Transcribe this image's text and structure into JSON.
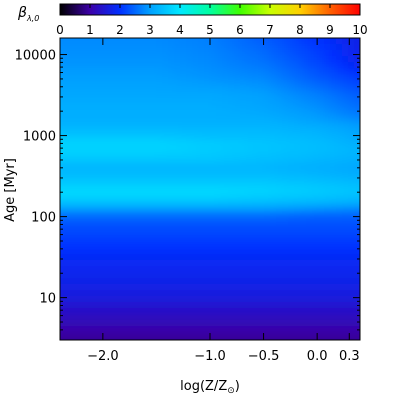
{
  "chart_data": {
    "type": "heatmap",
    "title": "",
    "colorbar": {
      "label_main": "β",
      "label_sub": "λ,0",
      "range": [
        0,
        10
      ],
      "ticks": [
        "0",
        "1",
        "2",
        "3",
        "4",
        "5",
        "6",
        "7",
        "8",
        "9",
        "10"
      ],
      "colormap": "rainbow",
      "position": "top"
    },
    "x_axis": {
      "label_main": "log(Z/Z",
      "label_sub": "⊙",
      "label_end": ")",
      "range": [
        -2.4,
        0.4
      ],
      "ticks": [
        {
          "value": -2.0,
          "label": "−2.0"
        },
        {
          "value": -1.0,
          "label": "−1.0"
        },
        {
          "value": -0.5,
          "label": "−0.5"
        },
        {
          "value": 0.0,
          "label": "0.0"
        },
        {
          "value": 0.3,
          "label": "0.3"
        }
      ]
    },
    "y_axis": {
      "label_main": "Age ",
      "label_unit": "[Myr]",
      "scale": "log",
      "range": [
        3,
        16000
      ],
      "ticks": [
        {
          "value": 10,
          "label": "10"
        },
        {
          "value": 100,
          "label": "100"
        },
        {
          "value": 1000,
          "label": "1000"
        },
        {
          "value": 10000,
          "label": "10000"
        }
      ]
    },
    "grid": false,
    "z_matrix": {
      "x": [
        -2.4,
        -1.5,
        -1.0,
        -0.5,
        0.0,
        0.4
      ],
      "y_log_age": [
        0.5,
        0.8,
        1.0,
        1.3,
        1.5,
        1.7,
        1.9,
        2.0,
        2.1,
        2.2,
        2.3,
        2.4,
        2.5,
        2.6,
        2.7,
        2.8,
        2.9,
        3.0,
        3.1,
        3.2,
        3.3,
        3.5,
        3.7,
        3.9,
        4.2
      ],
      "values": [
        [
          0.9,
          0.9,
          0.9,
          0.9,
          0.9,
          0.9
        ],
        [
          1.3,
          1.3,
          1.3,
          1.3,
          1.3,
          1.3
        ],
        [
          1.6,
          1.6,
          1.6,
          1.6,
          1.6,
          1.6
        ],
        [
          1.8,
          1.8,
          1.8,
          1.8,
          1.8,
          1.8
        ],
        [
          1.9,
          1.9,
          1.9,
          1.9,
          1.9,
          1.9
        ],
        [
          2.1,
          2.1,
          2.1,
          2.1,
          2.1,
          2.1
        ],
        [
          2.3,
          2.3,
          2.3,
          2.3,
          2.3,
          2.3
        ],
        [
          2.5,
          2.5,
          2.5,
          2.5,
          2.4,
          2.4
        ],
        [
          3.0,
          3.0,
          3.0,
          3.0,
          2.9,
          2.8
        ],
        [
          3.6,
          3.6,
          3.6,
          3.5,
          3.4,
          3.3
        ],
        [
          3.8,
          3.8,
          3.8,
          3.7,
          3.6,
          3.5
        ],
        [
          3.6,
          3.6,
          3.6,
          3.6,
          3.5,
          3.4
        ],
        [
          3.4,
          3.4,
          3.4,
          3.4,
          3.3,
          3.2
        ],
        [
          3.3,
          3.3,
          3.3,
          3.3,
          3.2,
          3.1
        ],
        [
          3.5,
          3.5,
          3.5,
          3.4,
          3.3,
          3.2
        ],
        [
          3.7,
          3.7,
          3.6,
          3.5,
          3.4,
          3.3
        ],
        [
          3.7,
          3.7,
          3.6,
          3.5,
          3.4,
          3.2
        ],
        [
          3.5,
          3.5,
          3.4,
          3.4,
          3.3,
          3.1
        ],
        [
          3.3,
          3.3,
          3.3,
          3.3,
          3.2,
          3.0
        ],
        [
          3.2,
          3.2,
          3.2,
          3.2,
          3.0,
          2.8
        ],
        [
          3.2,
          3.2,
          3.2,
          3.1,
          2.9,
          2.6
        ],
        [
          3.1,
          3.1,
          3.1,
          3.0,
          2.7,
          2.4
        ],
        [
          3.0,
          3.0,
          2.9,
          2.8,
          2.4,
          2.1
        ],
        [
          2.9,
          2.9,
          2.8,
          2.6,
          2.2,
          1.8
        ],
        [
          2.8,
          2.8,
          2.7,
          2.4,
          2.0,
          1.7
        ]
      ]
    }
  }
}
